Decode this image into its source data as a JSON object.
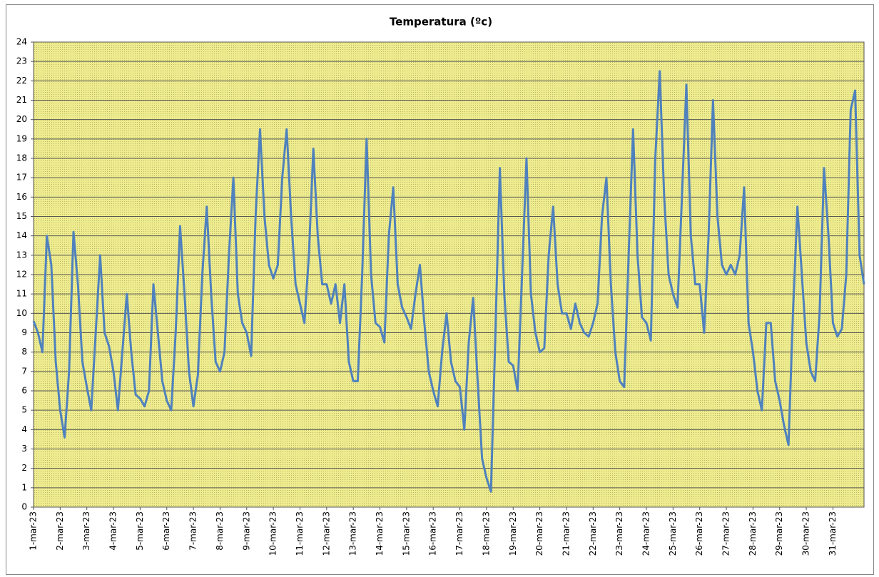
{
  "chart_data": {
    "type": "line",
    "title": "Temperatura (ºc)",
    "categories": [
      "1-mar-23",
      null,
      null,
      null,
      null,
      null,
      "2-mar-23",
      null,
      null,
      null,
      null,
      null,
      "3-mar-23",
      null,
      null,
      null,
      null,
      null,
      "4-mar-23",
      null,
      null,
      null,
      null,
      null,
      "5-mar-23",
      null,
      null,
      null,
      null,
      null,
      "6-mar-23",
      null,
      null,
      null,
      null,
      null,
      "7-mar-23",
      null,
      null,
      null,
      null,
      null,
      "8-mar-23",
      null,
      null,
      null,
      null,
      null,
      "9-mar-23",
      null,
      null,
      null,
      null,
      null,
      "10-mar-23",
      null,
      null,
      null,
      null,
      null,
      "11-mar-23",
      null,
      null,
      null,
      null,
      null,
      "12-mar-23",
      null,
      null,
      null,
      null,
      null,
      "13-mar-23",
      null,
      null,
      null,
      null,
      null,
      "14-mar-23",
      null,
      null,
      null,
      null,
      null,
      "15-mar-23",
      null,
      null,
      null,
      null,
      null,
      "16-mar-23",
      null,
      null,
      null,
      null,
      null,
      "17-mar-23",
      null,
      null,
      null,
      null,
      null,
      "18-mar-23",
      null,
      null,
      null,
      null,
      null,
      "19-mar-23",
      null,
      null,
      null,
      null,
      null,
      "20-mar-23",
      null,
      null,
      null,
      null,
      null,
      "21-mar-23",
      null,
      null,
      null,
      null,
      null,
      "22-mar-23",
      null,
      null,
      null,
      null,
      null,
      "23-mar-23",
      null,
      null,
      null,
      null,
      null,
      "24-mar-23",
      null,
      null,
      null,
      null,
      null,
      "25-mar-23",
      null,
      null,
      null,
      null,
      null,
      "26-mar-23",
      null,
      null,
      null,
      null,
      null,
      "27-mar-23",
      null,
      null,
      null,
      null,
      null,
      "28-mar-23",
      null,
      null,
      null,
      null,
      null,
      "29-mar-23",
      null,
      null,
      null,
      null,
      null,
      "30-mar-23",
      null,
      null,
      null,
      null,
      null,
      "31-mar-23",
      null,
      null,
      null,
      null,
      null,
      null,
      null
    ],
    "values": [
      9.6,
      9.0,
      8.0,
      14.0,
      12.5,
      7.5,
      5.0,
      3.6,
      7.0,
      14.2,
      11.5,
      7.5,
      6.2,
      5.0,
      9.0,
      13.0,
      9.0,
      8.3,
      7.0,
      5.0,
      8.0,
      11.0,
      8.0,
      5.8,
      5.6,
      5.2,
      6.0,
      11.5,
      9.0,
      6.5,
      5.5,
      5.0,
      9.0,
      14.5,
      11,
      7.0,
      5.2,
      6.8,
      12,
      15.5,
      11,
      7.5,
      7.0,
      8.0,
      13,
      17,
      11,
      9.5,
      9.0,
      7.8,
      15,
      19.5,
      15,
      12.5,
      11.8,
      12.5,
      17,
      19.5,
      15,
      11.5,
      10.5,
      9.5,
      13,
      18.5,
      14,
      11.5,
      11.5,
      10.5,
      11.5,
      9.5,
      11.5,
      7.5,
      6.5,
      6.5,
      12,
      19,
      12,
      9.5,
      9.3,
      8.5,
      14,
      16.5,
      11.5,
      10.3,
      9.8,
      9.2,
      11,
      12.5,
      9.5,
      7.0,
      6.0,
      5.2,
      8,
      10.0,
      7.5,
      6.5,
      6.2,
      4.0,
      8.5,
      10.8,
      6.5,
      2.5,
      1.5,
      0.8,
      9,
      17.5,
      11,
      7.5,
      7.3,
      6.0,
      12,
      18.0,
      11,
      9.0,
      8.0,
      8.2,
      13,
      15.5,
      11.5,
      10.0,
      10.0,
      9.2,
      10.5,
      9.5,
      9.0,
      8.8,
      9.5,
      10.5,
      15,
      17.0,
      11.5,
      8.0,
      6.5,
      6.2,
      13,
      19.5,
      13,
      9.8,
      9.5,
      8.6,
      18,
      22.5,
      16,
      12.0,
      11.0,
      10.3,
      16,
      21.8,
      14,
      11.5,
      11.5,
      9.0,
      14,
      21.0,
      15,
      12.5,
      12.0,
      12.5,
      12.0,
      13,
      16.5,
      9.5,
      8.0,
      6.0,
      5.0,
      9.5,
      9.5,
      6.5,
      5.5,
      4.2,
      3.2,
      10,
      15.5,
      12.0,
      8.5,
      7.0,
      6.5,
      10,
      17.5,
      14.0,
      9.5,
      8.8,
      9.2,
      12,
      20.5,
      21.5,
      13,
      11.5
    ],
    "color": "#4f81bd",
    "ylim": [
      0,
      24
    ],
    "yticks": [
      0,
      1,
      2,
      3,
      4,
      5,
      6,
      7,
      8,
      9,
      10,
      11,
      12,
      13,
      14,
      15,
      16,
      17,
      18,
      19,
      20,
      21,
      22,
      23,
      24
    ],
    "grid": true
  }
}
